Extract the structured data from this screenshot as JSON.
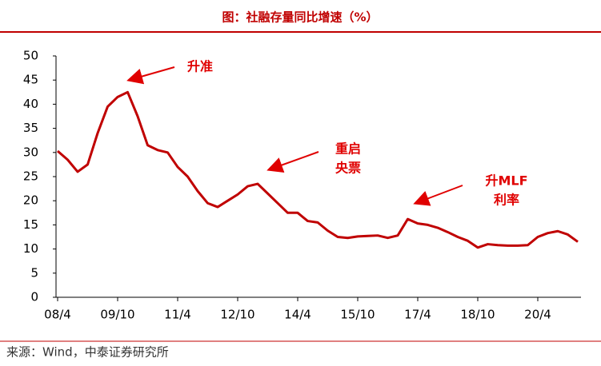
{
  "chart_data": {
    "type": "line",
    "title": "图：社融存量同比增速（%）",
    "categories": [
      "08/4",
      null,
      null,
      null,
      null,
      null,
      "09/10",
      null,
      null,
      null,
      null,
      null,
      "11/4",
      null,
      null,
      null,
      null,
      null,
      "12/10",
      null,
      null,
      null,
      null,
      null,
      "14/4",
      null,
      null,
      null,
      null,
      null,
      "15/10",
      null,
      null,
      null,
      null,
      null,
      "17/4",
      null,
      null,
      null,
      null,
      null,
      "18/10",
      null,
      null,
      null,
      null,
      null,
      "20/4",
      null,
      null,
      null,
      null
    ],
    "series": [
      {
        "name": "社融存量同比增速",
        "color": "#c00000",
        "values": [
          30.3,
          28.5,
          26,
          27.5,
          34,
          39.5,
          41.5,
          42.5,
          37.5,
          31.5,
          30.5,
          30,
          27,
          25,
          22,
          19.5,
          18.7,
          20,
          21.3,
          23,
          23.5,
          21.5,
          19.5,
          17.5,
          17.5,
          15.8,
          15.5,
          13.8,
          12.5,
          12.3,
          12.6,
          12.7,
          12.8,
          12.3,
          12.8,
          16.2,
          15.3,
          15,
          14.4,
          13.5,
          12.5,
          11.7,
          10.3,
          11,
          10.8,
          10.7,
          10.7,
          10.8,
          12.5,
          13.3,
          13.7,
          13,
          11.5
        ]
      }
    ],
    "ylim": [
      0,
      50
    ],
    "yticks": [
      0,
      5,
      10,
      15,
      20,
      25,
      30,
      35,
      40,
      45,
      50
    ],
    "annotations": [
      [
        "升准"
      ],
      [
        "重启",
        "央票"
      ],
      [
        "升MLF",
        "利率"
      ]
    ],
    "source": "来源：Wind，中泰证券研究所"
  }
}
